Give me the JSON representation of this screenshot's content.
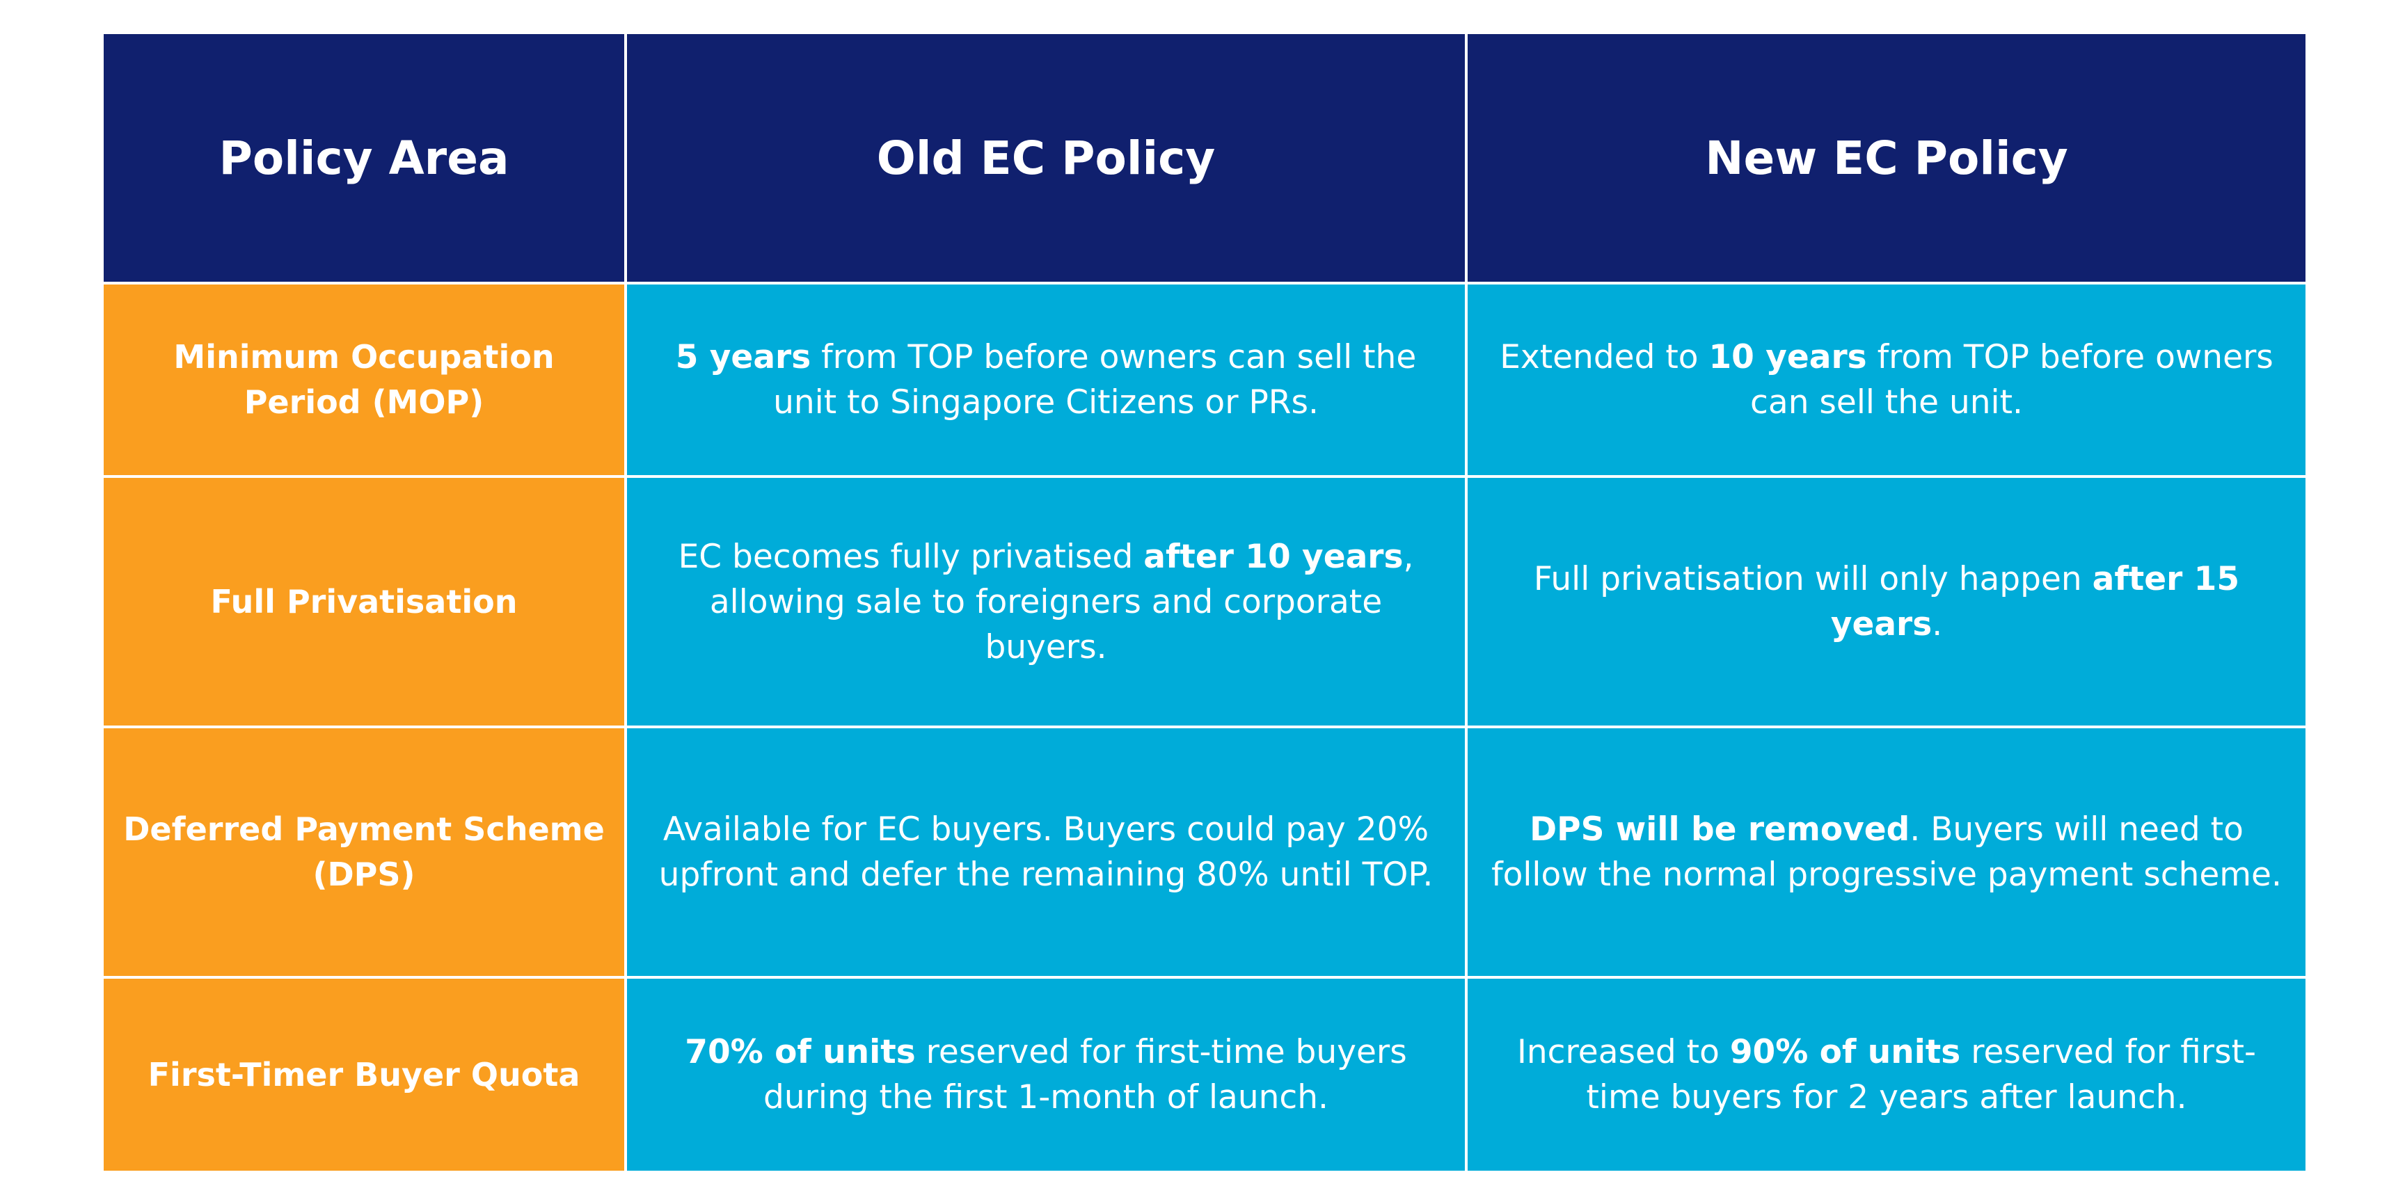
{
  "header": {
    "policy_area": "Policy Area",
    "old_policy": "Old EC Policy",
    "new_policy": "New EC Policy"
  },
  "rows": [
    {
      "area": "Minimum Occupation Period (MOP)",
      "old": {
        "bold_lead": "5 years",
        "rest": " from TOP before owners can sell the unit to Singapore Citizens or PRs."
      },
      "new": {
        "lead": "Extended to ",
        "bold": "10 years",
        "rest": " from TOP before owners can sell the unit."
      }
    },
    {
      "area": "Full Privatisation",
      "old": {
        "lead": "EC becomes fully privatised ",
        "bold": "after 10 years",
        "rest": ", allowing sale to foreigners and corporate buyers."
      },
      "new": {
        "lead": "Full privatisation will only happen ",
        "bold": "after 15 years",
        "rest": "."
      }
    },
    {
      "area": "Deferred Payment Scheme (DPS)",
      "old": {
        "text": "Available for EC buyers. Buyers could pay 20% upfront and defer the remaining 80% until TOP."
      },
      "new": {
        "bold_lead": "DPS will be removed",
        "rest": ". Buyers will need to follow the normal progressive payment scheme."
      }
    },
    {
      "area": "First-Timer Buyer Quota",
      "old": {
        "bold_lead": "70% of units",
        "rest": " reserved for first-time buyers during the first 1-month of launch."
      },
      "new": {
        "lead": "Increased to ",
        "bold": "90% of units",
        "rest": " reserved for first-time buyers for 2 years after launch."
      }
    }
  ],
  "colors": {
    "header_bg": "#10206e",
    "area_bg": "#fa9e1f",
    "cell_bg": "#00acd9",
    "text": "#ffffff"
  }
}
